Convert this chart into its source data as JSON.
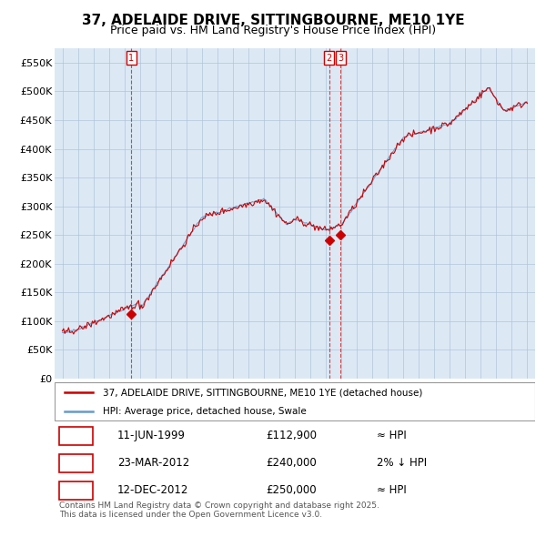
{
  "title": "37, ADELAIDE DRIVE, SITTINGBOURNE, ME10 1YE",
  "subtitle": "Price paid vs. HM Land Registry's House Price Index (HPI)",
  "title_fontsize": 11,
  "subtitle_fontsize": 9,
  "background_color": "#ffffff",
  "plot_bg_color": "#dce9f5",
  "grid_color": "#b0c4d8",
  "ylim": [
    0,
    575000
  ],
  "yticks": [
    0,
    50000,
    100000,
    150000,
    200000,
    250000,
    300000,
    350000,
    400000,
    450000,
    500000,
    550000
  ],
  "ytick_labels": [
    "£0",
    "£50K",
    "£100K",
    "£150K",
    "£200K",
    "£250K",
    "£300K",
    "£350K",
    "£400K",
    "£450K",
    "£500K",
    "£550K"
  ],
  "xlim_start": 1994.5,
  "xlim_end": 2025.5,
  "xtick_years": [
    1995,
    1996,
    1997,
    1998,
    1999,
    2000,
    2001,
    2002,
    2003,
    2004,
    2005,
    2006,
    2007,
    2008,
    2009,
    2010,
    2011,
    2012,
    2013,
    2014,
    2015,
    2016,
    2017,
    2018,
    2019,
    2020,
    2021,
    2022,
    2023,
    2024,
    2025
  ],
  "hpi_line_color": "#6699cc",
  "price_line_color": "#cc0000",
  "sale_marker_color": "#cc0000",
  "legend_label_price": "37, ADELAIDE DRIVE, SITTINGBOURNE, ME10 1YE (detached house)",
  "legend_label_hpi": "HPI: Average price, detached house, Swale",
  "transactions": [
    {
      "num": 1,
      "date": "11-JUN-1999",
      "price": 112900,
      "price_str": "£112,900",
      "rel": "≈ HPI",
      "year": 1999.44
    },
    {
      "num": 2,
      "date": "23-MAR-2012",
      "price": 240000,
      "price_str": "£240,000",
      "rel": "2% ↓ HPI",
      "year": 2012.22
    },
    {
      "num": 3,
      "date": "12-DEC-2012",
      "price": 250000,
      "price_str": "£250,000",
      "rel": "≈ HPI",
      "year": 2012.94
    }
  ],
  "footer_text": "Contains HM Land Registry data © Crown copyright and database right 2025.\nThis data is licensed under the Open Government Licence v3.0."
}
